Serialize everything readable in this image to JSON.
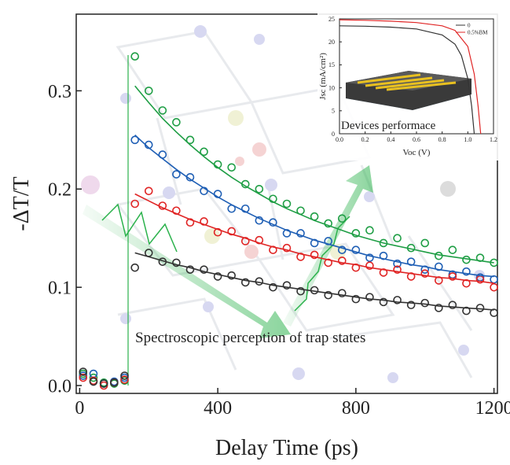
{
  "chart_data": [
    {
      "type": "scatter",
      "x_label": "Delay Time (ps)",
      "y_label": "-ΔT/T",
      "annotation": "Spectroscopic perception of trap states",
      "x": [
        10,
        40,
        70,
        100,
        130,
        160,
        200,
        240,
        280,
        320,
        360,
        400,
        440,
        480,
        520,
        560,
        600,
        640,
        680,
        720,
        760,
        800,
        840,
        880,
        920,
        960,
        1000,
        1040,
        1080,
        1120,
        1160,
        1200
      ],
      "xlim": [
        -10,
        1210
      ],
      "xticks": [
        0,
        400,
        800,
        1200
      ],
      "ylim": [
        -0.008,
        0.378
      ],
      "yticks": [
        {
          "value": 0,
          "label": "0.0"
        },
        0.1,
        0.2,
        0.3
      ],
      "series": [
        {
          "color": "#1f9e45",
          "mode": "markers",
          "values": [
            0.012,
            0.008,
            0.003,
            0.002,
            0.005,
            0.335,
            0.3,
            0.28,
            0.268,
            0.25,
            0.238,
            0.225,
            0.222,
            0.205,
            0.2,
            0.19,
            0.185,
            0.178,
            0.172,
            0.165,
            0.17,
            0.155,
            0.158,
            0.145,
            0.15,
            0.14,
            0.145,
            0.132,
            0.138,
            0.128,
            0.13,
            0.125
          ]
        },
        {
          "color": "#1f5fb5",
          "mode": "markers",
          "values": [
            0.01,
            0.012,
            0.002,
            0.004,
            0.008,
            0.25,
            0.245,
            0.235,
            0.215,
            0.212,
            0.198,
            0.195,
            0.18,
            0.18,
            0.168,
            0.166,
            0.155,
            0.155,
            0.145,
            0.147,
            0.138,
            0.138,
            0.13,
            0.132,
            0.124,
            0.126,
            0.118,
            0.121,
            0.113,
            0.116,
            0.11,
            0.108
          ]
        },
        {
          "color": "#e02525",
          "mode": "markers",
          "values": [
            0.008,
            0.005,
            0.0,
            0.003,
            0.006,
            0.185,
            0.198,
            0.183,
            0.178,
            0.166,
            0.167,
            0.156,
            0.157,
            0.147,
            0.148,
            0.138,
            0.14,
            0.131,
            0.133,
            0.125,
            0.127,
            0.12,
            0.122,
            0.115,
            0.118,
            0.111,
            0.114,
            0.107,
            0.111,
            0.104,
            0.108,
            0.1
          ]
        },
        {
          "color": "#333333",
          "mode": "markers",
          "values": [
            0.014,
            0.004,
            0.002,
            0.003,
            0.01,
            0.12,
            0.135,
            0.126,
            0.125,
            0.118,
            0.118,
            0.111,
            0.112,
            0.105,
            0.106,
            0.1,
            0.102,
            0.096,
            0.097,
            0.092,
            0.094,
            0.088,
            0.09,
            0.085,
            0.087,
            0.082,
            0.084,
            0.079,
            0.082,
            0.076,
            0.079,
            0.074
          ]
        },
        {
          "color": "#1f9e45",
          "mode": "line",
          "values": [
            null,
            null,
            null,
            null,
            null,
            0.305,
            0.288,
            0.272,
            0.258,
            0.245,
            0.233,
            0.222,
            0.212,
            0.203,
            0.195,
            0.187,
            0.18,
            0.174,
            0.168,
            0.163,
            0.158,
            0.153,
            0.149,
            0.145,
            0.142,
            0.139,
            0.136,
            0.133,
            0.131,
            0.129,
            0.127,
            0.125
          ]
        },
        {
          "color": "#1f5fb5",
          "mode": "line",
          "values": [
            null,
            null,
            null,
            null,
            null,
            0.255,
            0.242,
            0.231,
            0.22,
            0.21,
            0.201,
            0.192,
            0.184,
            0.177,
            0.17,
            0.164,
            0.158,
            0.153,
            0.148,
            0.144,
            0.14,
            0.136,
            0.132,
            0.129,
            0.126,
            0.123,
            0.121,
            0.118,
            0.116,
            0.114,
            0.112,
            0.111
          ]
        },
        {
          "color": "#e02525",
          "mode": "line",
          "values": [
            null,
            null,
            null,
            null,
            null,
            0.195,
            0.188,
            0.181,
            0.175,
            0.169,
            0.164,
            0.159,
            0.154,
            0.15,
            0.145,
            0.141,
            0.138,
            0.134,
            0.131,
            0.128,
            0.125,
            0.123,
            0.12,
            0.118,
            0.116,
            0.114,
            0.112,
            0.11,
            0.109,
            0.107,
            0.106,
            0.104
          ]
        },
        {
          "color": "#333333",
          "mode": "line",
          "values": [
            null,
            null,
            null,
            null,
            null,
            0.135,
            0.131,
            0.127,
            0.123,
            0.12,
            0.116,
            0.113,
            0.11,
            0.107,
            0.105,
            0.102,
            0.1,
            0.098,
            0.096,
            0.094,
            0.092,
            0.09,
            0.088,
            0.087,
            0.085,
            0.084,
            0.083,
            0.081,
            0.08,
            0.079,
            0.078,
            0.077
          ]
        }
      ]
    },
    {
      "type": "line",
      "x_label": "Voc (V)",
      "y_label": "Jsc (mA/cm²)",
      "annotation": "Devices performace",
      "xlim": [
        0,
        1.2
      ],
      "xticks": [
        {
          "value": 0,
          "label": "0.0"
        },
        0.2,
        0.4,
        0.6,
        0.8,
        {
          "value": 1,
          "label": "1.0"
        },
        1.2
      ],
      "ylim": [
        0,
        25
      ],
      "yticks": [
        0,
        5,
        10,
        15,
        20,
        25
      ],
      "legend": "upper right",
      "series": [
        {
          "name": "0",
          "color": "#333333",
          "x": [
            0,
            0.2,
            0.4,
            0.6,
            0.8,
            0.9,
            0.95,
            1.0,
            1.03,
            1.05
          ],
          "values": [
            23.5,
            23.4,
            23.2,
            22.8,
            21.5,
            19.5,
            17,
            12,
            6,
            0
          ]
        },
        {
          "name": "0.5%BM",
          "color": "#e02525",
          "x": [
            0,
            0.2,
            0.4,
            0.6,
            0.8,
            0.9,
            1.0,
            1.05,
            1.08,
            1.1
          ],
          "values": [
            24.8,
            24.7,
            24.5,
            24.2,
            23.5,
            22.5,
            19,
            13,
            6,
            0
          ]
        }
      ]
    }
  ]
}
